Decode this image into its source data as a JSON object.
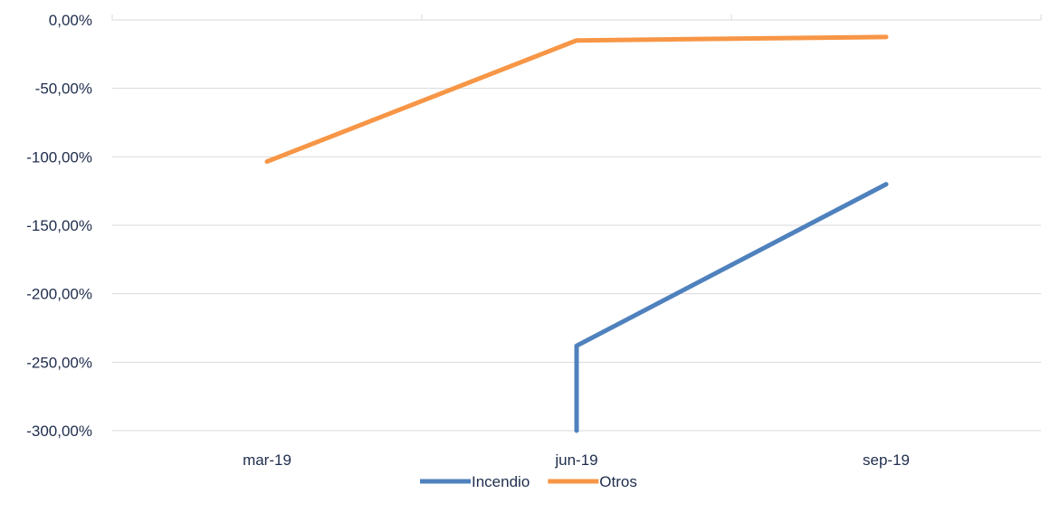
{
  "chart_data": {
    "type": "line",
    "categories": [
      "mar-19",
      "jun-19",
      "sep-19"
    ],
    "y_tick_labels": [
      "0,00%",
      "-50,00%",
      "-100,00%",
      "-150,00%",
      "-200,00%",
      "-250,00%",
      "-300,00%"
    ],
    "y_ticks": [
      0,
      -50,
      -100,
      -150,
      -200,
      -250,
      -300
    ],
    "ylim": [
      -300,
      0
    ],
    "grid": true,
    "legend_position": "bottom",
    "series": [
      {
        "name": "Incendio",
        "color": "#4f81bd",
        "points": [
          {
            "x": "jun-19",
            "y": -300
          },
          {
            "x": "jun-19",
            "y": -238
          },
          {
            "x": "sep-19",
            "y": -120
          }
        ]
      },
      {
        "name": "Otros",
        "color": "#f79646",
        "points": [
          {
            "x": "mar-19",
            "y": -103.5
          },
          {
            "x": "jun-19",
            "y": -15
          },
          {
            "x": "sep-19",
            "y": -12.5
          }
        ]
      }
    ]
  }
}
